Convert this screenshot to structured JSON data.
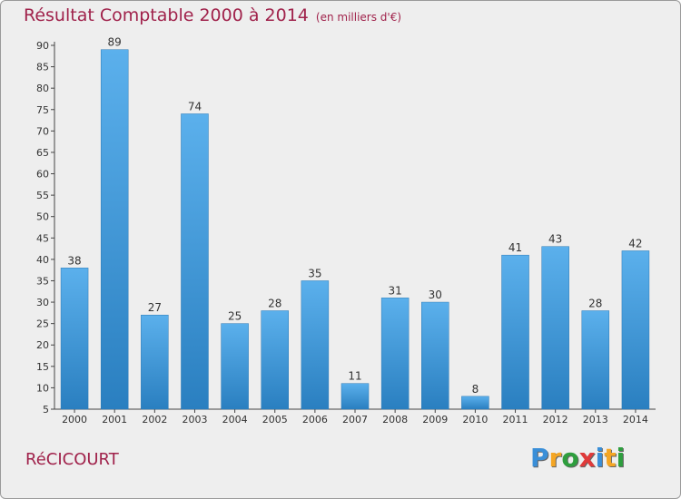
{
  "header": {
    "title": "Résultat Comptable 2000 à 2014",
    "subtitle": "(en milliers d'€)"
  },
  "footer": {
    "commune": "RéCICOURT",
    "logo_letters": [
      "P",
      "r",
      "o",
      "x",
      "i",
      "t",
      "i"
    ],
    "logo_colors": [
      "#3a8fd8",
      "#f5a623",
      "#2e9e3e",
      "#e03a3a",
      "#3a8fd8",
      "#f5a623",
      "#2e9e3e"
    ]
  },
  "colors": {
    "bar_top": "#5bb0ec",
    "bar_bottom": "#2a7fc0",
    "title": "#a0224b"
  },
  "chart_data": {
    "type": "bar",
    "title": "Résultat Comptable 2000 à 2014",
    "subtitle": "(en milliers d'€)",
    "categories": [
      "2000",
      "2001",
      "2002",
      "2003",
      "2004",
      "2005",
      "2006",
      "2007",
      "2008",
      "2009",
      "2010",
      "2011",
      "2012",
      "2013",
      "2014"
    ],
    "values": [
      38,
      89,
      27,
      74,
      25,
      28,
      35,
      11,
      31,
      30,
      8,
      41,
      43,
      28,
      42
    ],
    "ylim": [
      5,
      90
    ],
    "yticks": [
      5,
      10,
      15,
      20,
      25,
      30,
      35,
      40,
      45,
      50,
      55,
      60,
      65,
      70,
      75,
      80,
      85,
      90
    ],
    "grid": false
  }
}
